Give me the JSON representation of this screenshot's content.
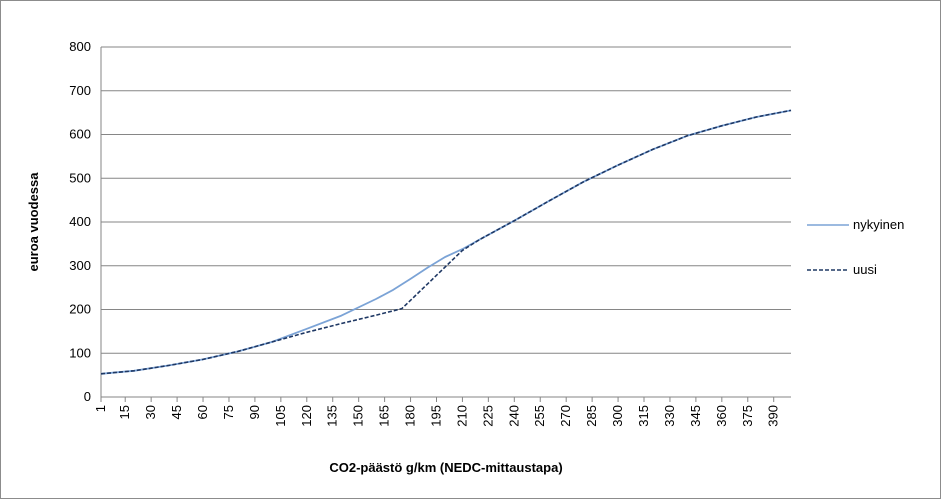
{
  "chart_data": {
    "type": "line",
    "title": "",
    "xlabel": "CO2-päästö g/km (NEDC-mittaustapa)",
    "ylabel": "euroa vuodessa",
    "ylim": [
      0,
      800
    ],
    "yticks": [
      0,
      100,
      200,
      300,
      400,
      500,
      600,
      700,
      800
    ],
    "xlim": [
      1,
      400
    ],
    "xtick_labels": [
      "1",
      "15",
      "30",
      "45",
      "60",
      "75",
      "90",
      "105",
      "120",
      "135",
      "150",
      "165",
      "180",
      "195",
      "210",
      "225",
      "240",
      "255",
      "270",
      "285",
      "300",
      "315",
      "330",
      "345",
      "360",
      "375",
      "390"
    ],
    "grid": true,
    "legend_position": "right",
    "series": [
      {
        "name": "nykyinen",
        "color": "#7ba3d6",
        "style": "solid",
        "points": [
          [
            1,
            53
          ],
          [
            20,
            60
          ],
          [
            40,
            72
          ],
          [
            60,
            86
          ],
          [
            80,
            104
          ],
          [
            100,
            126
          ],
          [
            120,
            156
          ],
          [
            140,
            186
          ],
          [
            160,
            224
          ],
          [
            170,
            245
          ],
          [
            180,
            270
          ],
          [
            190,
            296
          ],
          [
            200,
            320
          ],
          [
            210,
            338
          ],
          [
            220,
            360
          ],
          [
            240,
            403
          ],
          [
            260,
            448
          ],
          [
            280,
            492
          ],
          [
            300,
            530
          ],
          [
            320,
            566
          ],
          [
            340,
            597
          ],
          [
            360,
            620
          ],
          [
            380,
            640
          ],
          [
            400,
            655
          ]
        ]
      },
      {
        "name": "uusi",
        "color": "#1f3864",
        "style": "dashed",
        "points": [
          [
            1,
            53
          ],
          [
            20,
            60
          ],
          [
            40,
            72
          ],
          [
            60,
            86
          ],
          [
            80,
            104
          ],
          [
            100,
            126
          ],
          [
            120,
            148
          ],
          [
            140,
            168
          ],
          [
            160,
            187
          ],
          [
            175,
            202
          ],
          [
            210,
            335
          ],
          [
            220,
            360
          ],
          [
            240,
            403
          ],
          [
            260,
            448
          ],
          [
            280,
            492
          ],
          [
            300,
            530
          ],
          [
            320,
            566
          ],
          [
            340,
            597
          ],
          [
            360,
            620
          ],
          [
            380,
            640
          ],
          [
            400,
            655
          ]
        ]
      }
    ]
  }
}
